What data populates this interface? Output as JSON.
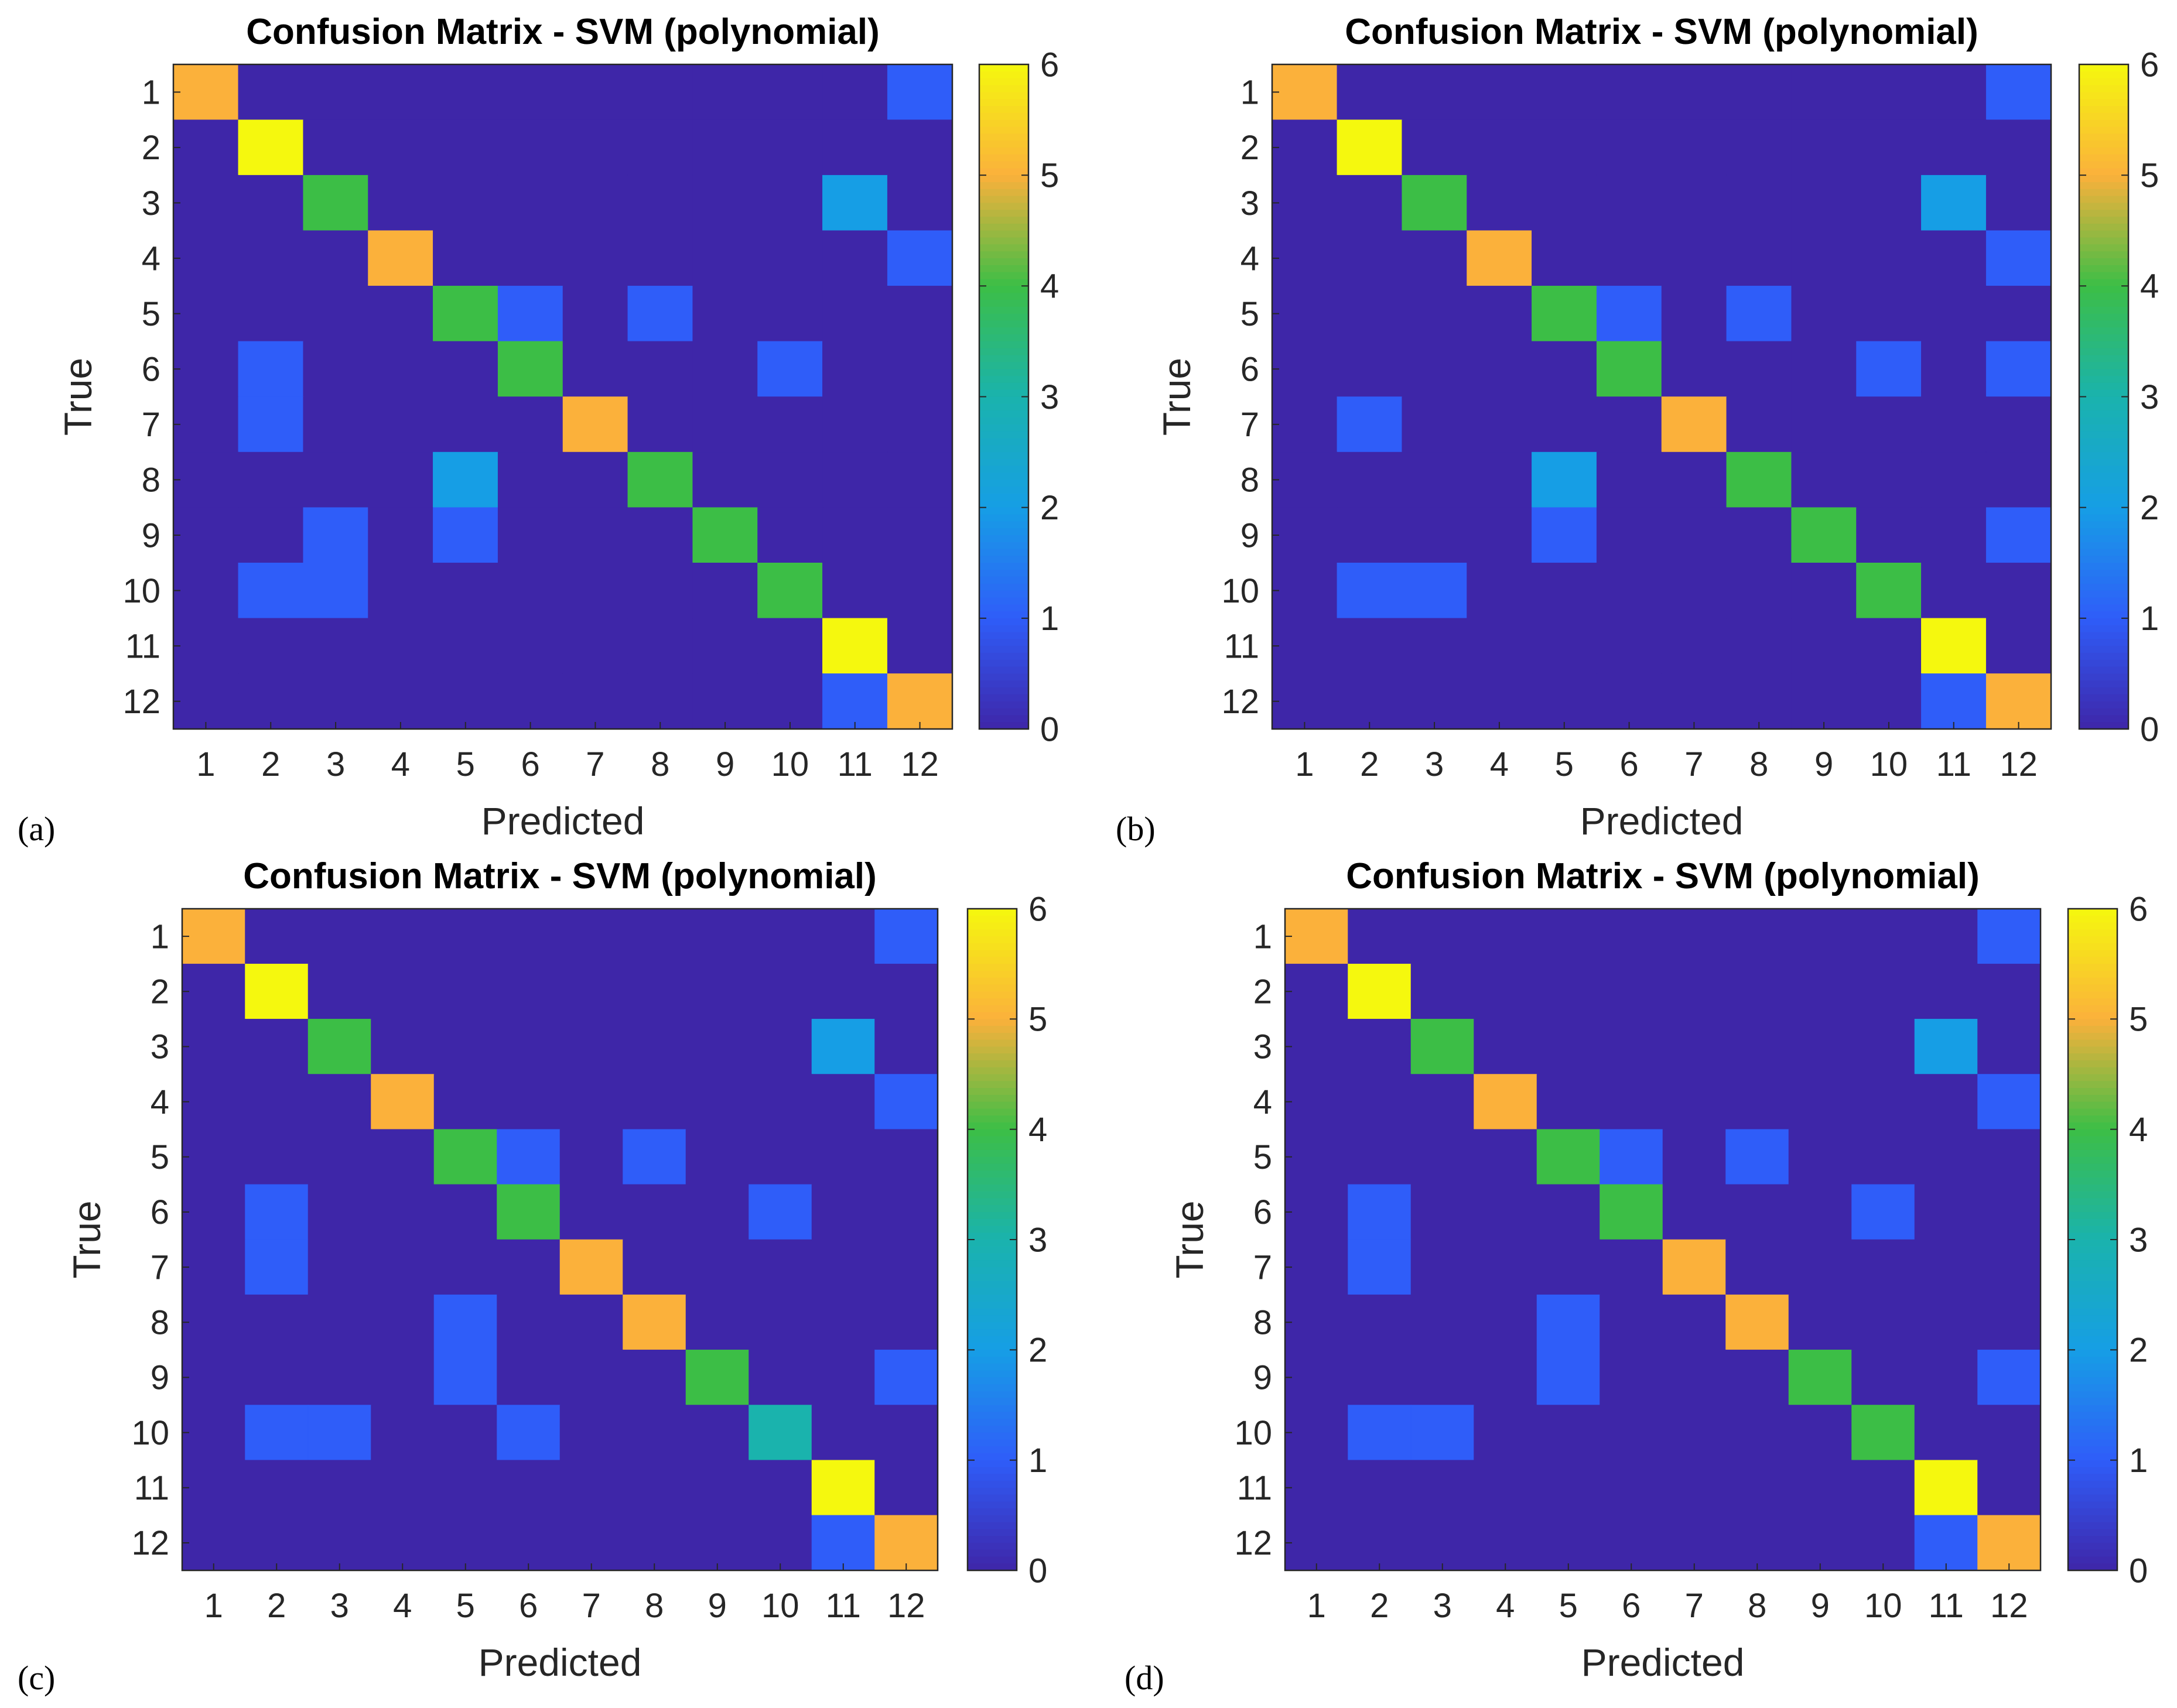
{
  "figure": {
    "panel_labels": [
      "(a)",
      "(b)",
      "(c)",
      "(d)"
    ]
  },
  "colorbar": {
    "ticks": [
      "0",
      "1",
      "2",
      "3",
      "4",
      "5",
      "6"
    ]
  },
  "palette": [
    "#3e26a8",
    "#2f5df9",
    "#169ee5",
    "#1ab3ad",
    "#3cbe46",
    "#fbb13b",
    "#f5f80e"
  ],
  "chart_data": [
    {
      "type": "heatmap",
      "title": "Confusion Matrix - SVM (polynomial)",
      "xlabel": "Predicted",
      "ylabel": "True",
      "categories": [
        "1",
        "2",
        "3",
        "4",
        "5",
        "6",
        "7",
        "8",
        "9",
        "10",
        "11",
        "12"
      ],
      "clim": [
        0,
        6
      ],
      "matrix": [
        [
          5,
          0,
          0,
          0,
          0,
          0,
          0,
          0,
          0,
          0,
          0,
          1
        ],
        [
          0,
          6,
          0,
          0,
          0,
          0,
          0,
          0,
          0,
          0,
          0,
          0
        ],
        [
          0,
          0,
          4,
          0,
          0,
          0,
          0,
          0,
          0,
          0,
          2,
          0
        ],
        [
          0,
          0,
          0,
          5,
          0,
          0,
          0,
          0,
          0,
          0,
          0,
          1
        ],
        [
          0,
          0,
          0,
          0,
          4,
          1,
          0,
          1,
          0,
          0,
          0,
          0
        ],
        [
          0,
          1,
          0,
          0,
          0,
          4,
          0,
          0,
          0,
          1,
          0,
          0
        ],
        [
          0,
          1,
          0,
          0,
          0,
          0,
          5,
          0,
          0,
          0,
          0,
          0
        ],
        [
          0,
          0,
          0,
          0,
          2,
          0,
          0,
          4,
          0,
          0,
          0,
          0
        ],
        [
          0,
          0,
          1,
          0,
          1,
          0,
          0,
          0,
          4,
          0,
          0,
          0
        ],
        [
          0,
          1,
          1,
          0,
          0,
          0,
          0,
          0,
          0,
          4,
          0,
          0
        ],
        [
          0,
          0,
          0,
          0,
          0,
          0,
          0,
          0,
          0,
          0,
          6,
          0
        ],
        [
          0,
          0,
          0,
          0,
          0,
          0,
          0,
          0,
          0,
          0,
          1,
          5
        ]
      ]
    },
    {
      "type": "heatmap",
      "title": "Confusion Matrix - SVM (polynomial)",
      "xlabel": "Predicted",
      "ylabel": "True",
      "categories": [
        "1",
        "2",
        "3",
        "4",
        "5",
        "6",
        "7",
        "8",
        "9",
        "10",
        "11",
        "12"
      ],
      "clim": [
        0,
        6
      ],
      "matrix": [
        [
          5,
          0,
          0,
          0,
          0,
          0,
          0,
          0,
          0,
          0,
          0,
          1
        ],
        [
          0,
          6,
          0,
          0,
          0,
          0,
          0,
          0,
          0,
          0,
          0,
          0
        ],
        [
          0,
          0,
          4,
          0,
          0,
          0,
          0,
          0,
          0,
          0,
          2,
          0
        ],
        [
          0,
          0,
          0,
          5,
          0,
          0,
          0,
          0,
          0,
          0,
          0,
          1
        ],
        [
          0,
          0,
          0,
          0,
          4,
          1,
          0,
          1,
          0,
          0,
          0,
          0
        ],
        [
          0,
          0,
          0,
          0,
          0,
          4,
          0,
          0,
          0,
          1,
          0,
          1
        ],
        [
          0,
          1,
          0,
          0,
          0,
          0,
          5,
          0,
          0,
          0,
          0,
          0
        ],
        [
          0,
          0,
          0,
          0,
          2,
          0,
          0,
          4,
          0,
          0,
          0,
          0
        ],
        [
          0,
          0,
          0,
          0,
          1,
          0,
          0,
          0,
          4,
          0,
          0,
          1
        ],
        [
          0,
          1,
          1,
          0,
          0,
          0,
          0,
          0,
          0,
          4,
          0,
          0
        ],
        [
          0,
          0,
          0,
          0,
          0,
          0,
          0,
          0,
          0,
          0,
          6,
          0
        ],
        [
          0,
          0,
          0,
          0,
          0,
          0,
          0,
          0,
          0,
          0,
          1,
          5
        ]
      ]
    },
    {
      "type": "heatmap",
      "title": "Confusion Matrix - SVM (polynomial)",
      "xlabel": "Predicted",
      "ylabel": "True",
      "categories": [
        "1",
        "2",
        "3",
        "4",
        "5",
        "6",
        "7",
        "8",
        "9",
        "10",
        "11",
        "12"
      ],
      "clim": [
        0,
        6
      ],
      "matrix": [
        [
          5,
          0,
          0,
          0,
          0,
          0,
          0,
          0,
          0,
          0,
          0,
          1
        ],
        [
          0,
          6,
          0,
          0,
          0,
          0,
          0,
          0,
          0,
          0,
          0,
          0
        ],
        [
          0,
          0,
          4,
          0,
          0,
          0,
          0,
          0,
          0,
          0,
          2,
          0
        ],
        [
          0,
          0,
          0,
          5,
          0,
          0,
          0,
          0,
          0,
          0,
          0,
          1
        ],
        [
          0,
          0,
          0,
          0,
          4,
          1,
          0,
          1,
          0,
          0,
          0,
          0
        ],
        [
          0,
          1,
          0,
          0,
          0,
          4,
          0,
          0,
          0,
          1,
          0,
          0
        ],
        [
          0,
          1,
          0,
          0,
          0,
          0,
          5,
          0,
          0,
          0,
          0,
          0
        ],
        [
          0,
          0,
          0,
          0,
          1,
          0,
          0,
          5,
          0,
          0,
          0,
          0
        ],
        [
          0,
          0,
          0,
          0,
          1,
          0,
          0,
          0,
          4,
          0,
          0,
          1
        ],
        [
          0,
          1,
          1,
          0,
          0,
          1,
          0,
          0,
          0,
          3,
          0,
          0
        ],
        [
          0,
          0,
          0,
          0,
          0,
          0,
          0,
          0,
          0,
          0,
          6,
          0
        ],
        [
          0,
          0,
          0,
          0,
          0,
          0,
          0,
          0,
          0,
          0,
          1,
          5
        ]
      ]
    },
    {
      "type": "heatmap",
      "title": "Confusion Matrix - SVM (polynomial)",
      "xlabel": "Predicted",
      "ylabel": "True",
      "categories": [
        "1",
        "2",
        "3",
        "4",
        "5",
        "6",
        "7",
        "8",
        "9",
        "10",
        "11",
        "12"
      ],
      "clim": [
        0,
        6
      ],
      "matrix": [
        [
          5,
          0,
          0,
          0,
          0,
          0,
          0,
          0,
          0,
          0,
          0,
          1
        ],
        [
          0,
          6,
          0,
          0,
          0,
          0,
          0,
          0,
          0,
          0,
          0,
          0
        ],
        [
          0,
          0,
          4,
          0,
          0,
          0,
          0,
          0,
          0,
          0,
          2,
          0
        ],
        [
          0,
          0,
          0,
          5,
          0,
          0,
          0,
          0,
          0,
          0,
          0,
          1
        ],
        [
          0,
          0,
          0,
          0,
          4,
          1,
          0,
          1,
          0,
          0,
          0,
          0
        ],
        [
          0,
          1,
          0,
          0,
          0,
          4,
          0,
          0,
          0,
          1,
          0,
          0
        ],
        [
          0,
          1,
          0,
          0,
          0,
          0,
          5,
          0,
          0,
          0,
          0,
          0
        ],
        [
          0,
          0,
          0,
          0,
          1,
          0,
          0,
          5,
          0,
          0,
          0,
          0
        ],
        [
          0,
          0,
          0,
          0,
          1,
          0,
          0,
          0,
          4,
          0,
          0,
          1
        ],
        [
          0,
          1,
          1,
          0,
          0,
          0,
          0,
          0,
          0,
          4,
          0,
          0
        ],
        [
          0,
          0,
          0,
          0,
          0,
          0,
          0,
          0,
          0,
          0,
          6,
          0
        ],
        [
          0,
          0,
          0,
          0,
          0,
          0,
          0,
          0,
          0,
          0,
          1,
          5
        ]
      ]
    }
  ]
}
